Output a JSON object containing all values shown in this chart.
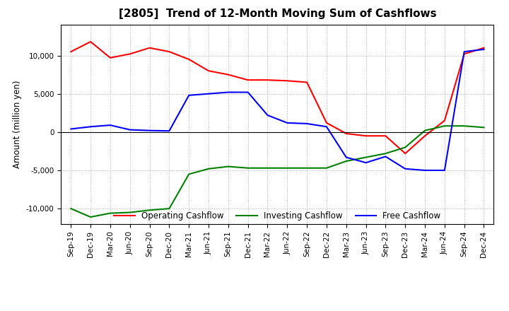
{
  "title": "[2805]  Trend of 12-Month Moving Sum of Cashflows",
  "ylabel": "Amount (million yen)",
  "x_labels": [
    "Sep-19",
    "Dec-19",
    "Mar-20",
    "Jun-20",
    "Sep-20",
    "Dec-20",
    "Mar-21",
    "Jun-21",
    "Sep-21",
    "Dec-21",
    "Mar-22",
    "Jun-22",
    "Sep-22",
    "Dec-22",
    "Mar-23",
    "Jun-23",
    "Sep-23",
    "Dec-23",
    "Mar-24",
    "Jun-24",
    "Sep-24",
    "Dec-24"
  ],
  "operating": [
    10500,
    11800,
    9700,
    10200,
    11000,
    10500,
    9500,
    8000,
    7500,
    6800,
    6800,
    6700,
    6500,
    1200,
    -200,
    -500,
    -500,
    -2800,
    -500,
    1500,
    10200,
    11000
  ],
  "investing": [
    -10000,
    -11100,
    -10600,
    -10500,
    -10200,
    -10000,
    -5500,
    -4800,
    -4500,
    -4700,
    -4700,
    -4700,
    -4700,
    -4700,
    -3800,
    -3300,
    -2800,
    -2000,
    200,
    800,
    800,
    600
  ],
  "free": [
    400,
    700,
    900,
    300,
    200,
    150,
    4800,
    5000,
    5200,
    5200,
    2200,
    1200,
    1100,
    700,
    -3300,
    -4000,
    -3200,
    -4800,
    -5000,
    -5000,
    10500,
    10800
  ],
  "operating_color": "#FF0000",
  "investing_color": "#008000",
  "free_color": "#0000FF",
  "ylim": [
    -12000,
    14000
  ],
  "yticks": [
    -10000,
    -5000,
    0,
    5000,
    10000
  ],
  "background_color": "#FFFFFF",
  "grid_color": "#999999"
}
